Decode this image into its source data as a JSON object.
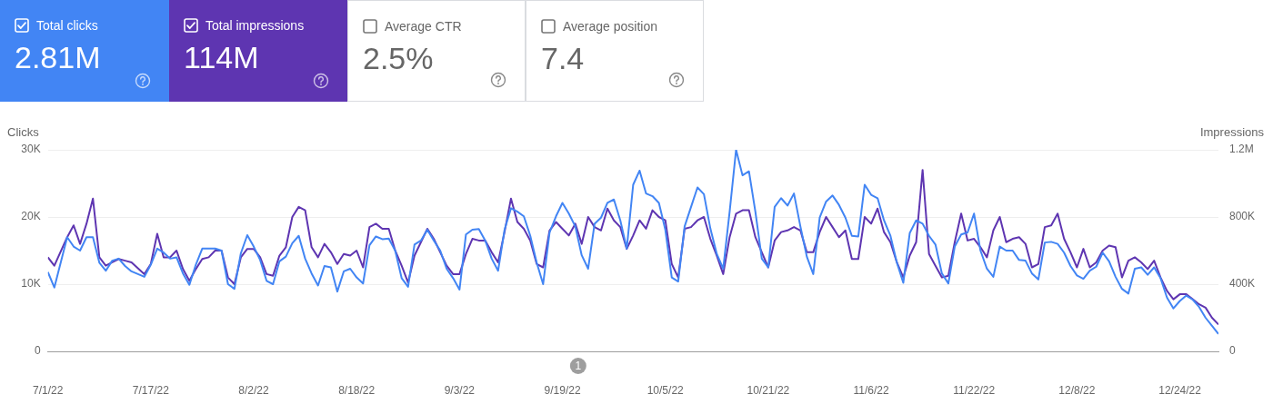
{
  "chart_data": {
    "type": "line",
    "ylabel": "Clicks",
    "y2label": "Impressions",
    "legend": "top left",
    "grid": "y",
    "x": [
      "--07-01",
      "--07-02",
      "--07-04",
      "--07-05",
      "--07-06",
      "--07-07",
      "--07-08",
      "--07-09",
      "--07-10",
      "--07-11",
      "--07-12",
      "--07-13",
      "--07-14",
      "--07-16",
      "--07-17",
      "--07-18",
      "--07-19",
      "--07-20",
      "--07-21",
      "--07-22",
      "--07-23",
      "--07-24",
      "--07-25",
      "--07-26",
      "--07-27",
      "--07-28",
      "--07-29",
      "--07-30",
      "--07-31",
      "--08-01",
      "--08-02",
      "--08-03",
      "--08-04",
      "--08-05",
      "--08-06",
      "--08-07",
      "--08-08",
      "--08-09",
      "--08-10",
      "--08-11",
      "--08-12",
      "--08-13",
      "--08-14",
      "--08-15",
      "--08-16",
      "--08-17",
      "--08-18",
      "--08-19",
      "--08-20",
      "--08-21",
      "--08-22",
      "--08-23",
      "--08-24",
      "--08-25",
      "--08-26",
      "--08-27",
      "--08-28",
      "--08-29",
      "--08-30",
      "--08-31",
      "--09-01",
      "--09-02",
      "--09-03",
      "--09-04",
      "--09-05",
      "--09-06",
      "--09-07",
      "--09-08",
      "--09-09",
      "--09-10",
      "--09-11",
      "--09-12",
      "--09-13",
      "--09-14",
      "--09-15",
      "--09-16",
      "--09-17",
      "--09-18",
      "--09-19",
      "--09-20",
      "--09-21",
      "--09-22",
      "--09-23",
      "--09-24",
      "--09-25",
      "--09-26",
      "--09-27",
      "--09-28",
      "--09-29",
      "--09-30",
      "--10-01",
      "--10-02",
      "--10-03",
      "--10-04",
      "--10-05",
      "--10-06",
      "--10-07",
      "--10-08",
      "--10-09",
      "--10-10",
      "--10-11",
      "--10-12",
      "--10-13",
      "--10-14",
      "--10-15",
      "--10-16",
      "--10-17",
      "--10-18",
      "--10-19",
      "--10-20",
      "--10-21",
      "--10-22",
      "--10-23",
      "--10-24",
      "--10-25",
      "--10-26",
      "--10-27",
      "--10-28",
      "--10-29",
      "--10-30",
      "--10-31",
      "--11-01",
      "--11-02",
      "--11-03",
      "--11-04",
      "--11-05",
      "--11-06",
      "--11-07",
      "--11-08",
      "--11-09",
      "--11-10",
      "--11-11",
      "--11-12",
      "--11-13",
      "--11-14",
      "--11-15",
      "--11-16",
      "--11-17",
      "--11-18",
      "--11-19",
      "--11-20",
      "--11-21",
      "--11-22",
      "--11-23",
      "--11-24",
      "--11-25",
      "--11-26",
      "--11-27",
      "--11-28",
      "--11-29",
      "--11-30",
      "--12-01",
      "--12-02",
      "--12-03",
      "--12-04",
      "--12-05",
      "--12-06",
      "--12-07",
      "--12-08",
      "--12-09",
      "--12-10",
      "--12-11",
      "--12-12",
      "--12-13",
      "--12-14",
      "--12-15",
      "--12-16",
      "--12-17",
      "--12-18",
      "--12-19",
      "--12-20",
      "--12-21",
      "--12-22",
      "--12-23",
      "--12-24",
      "--12-25",
      "--12-26",
      "--12-27",
      "--12-28",
      "--12-29",
      "--12-30"
    ],
    "series": [
      {
        "name": "Total clicks",
        "color": "#4285f4",
        "values": [
          11800,
          9500,
          17000,
          15600,
          15000,
          17000,
          17000,
          13200,
          12000,
          13500,
          13800,
          12700,
          11900,
          11100,
          12900,
          15300,
          14700,
          13800,
          14000,
          11600,
          9900,
          12900,
          15300,
          15300,
          15300,
          15000,
          10000,
          9300,
          14600,
          17300,
          15600,
          13600,
          10500,
          10000,
          13400,
          14100,
          16100,
          17200,
          13800,
          11600,
          9800,
          12700,
          12500,
          8900,
          11900,
          12300,
          11000,
          10100,
          15800,
          17100,
          16700,
          16800,
          15000,
          10900,
          9600,
          15900,
          16500,
          18100,
          16500,
          15000,
          12300,
          10900,
          9200,
          17400,
          18100,
          18200,
          16500,
          13800,
          12000,
          18100,
          21300,
          20800,
          20100,
          17200,
          13200,
          10000,
          17700,
          20100,
          22100,
          20500,
          18600,
          14300,
          12300,
          19000,
          19900,
          22100,
          22600,
          19500,
          15300,
          24800,
          26900,
          23500,
          23100,
          22100,
          18100,
          11000,
          10400,
          18600,
          21500,
          24400,
          23400,
          18300,
          14500,
          12300,
          20800,
          30000,
          26200,
          26800,
          20800,
          13800,
          12500,
          21500,
          22800,
          21700,
          23500,
          18600,
          14100,
          11500,
          19900,
          22300,
          23200,
          21800,
          19900,
          17200,
          17100,
          24800,
          23300,
          22800,
          19500,
          17200,
          13200,
          10200,
          17600,
          19500,
          19000,
          17200,
          15900,
          11600,
          10100,
          15600,
          17400,
          17700,
          20500,
          15000,
          12300,
          11100,
          15600,
          15000,
          15000,
          13600,
          13500,
          11600,
          10700,
          16200,
          16300,
          16000,
          14700,
          12700,
          11300,
          10800,
          12000,
          12600,
          14700,
          13400,
          11100,
          9300,
          8600,
          12300,
          12500,
          11400,
          12500,
          10900,
          8000,
          6400,
          7500,
          8300,
          7700,
          6600,
          5000,
          3800,
          2600
        ]
      },
      {
        "name": "Total impressions",
        "color": "#5e35b1",
        "axis": "y2",
        "values": [
          560000,
          510000,
          680000,
          750000,
          640000,
          760000,
          910000,
          560000,
          510000,
          530000,
          550000,
          540000,
          530000,
          460000,
          520000,
          700000,
          560000,
          560000,
          600000,
          490000,
          420000,
          490000,
          550000,
          560000,
          600000,
          600000,
          440000,
          400000,
          560000,
          610000,
          610000,
          560000,
          460000,
          450000,
          570000,
          620000,
          800000,
          860000,
          840000,
          620000,
          560000,
          640000,
          590000,
          520000,
          580000,
          570000,
          600000,
          500000,
          740000,
          760000,
          730000,
          730000,
          600000,
          510000,
          410000,
          570000,
          650000,
          730000,
          670000,
          590000,
          510000,
          460000,
          460000,
          580000,
          670000,
          660000,
          660000,
          590000,
          530000,
          710000,
          910000,
          770000,
          730000,
          660000,
          520000,
          500000,
          720000,
          770000,
          730000,
          690000,
          760000,
          640000,
          800000,
          740000,
          720000,
          850000,
          780000,
          740000,
          610000,
          690000,
          780000,
          730000,
          840000,
          800000,
          780000,
          520000,
          440000,
          730000,
          740000,
          780000,
          800000,
          670000,
          570000,
          460000,
          680000,
          820000,
          840000,
          840000,
          680000,
          590000,
          500000,
          660000,
          710000,
          720000,
          740000,
          720000,
          590000,
          590000,
          710000,
          800000,
          740000,
          680000,
          720000,
          550000,
          550000,
          800000,
          760000,
          850000,
          710000,
          650000,
          530000,
          440000,
          570000,
          650000,
          1080000,
          580000,
          510000,
          440000,
          450000,
          650000,
          820000,
          660000,
          670000,
          620000,
          560000,
          720000,
          800000,
          650000,
          670000,
          680000,
          640000,
          500000,
          520000,
          740000,
          750000,
          820000,
          670000,
          590000,
          500000,
          610000,
          500000,
          530000,
          600000,
          630000,
          620000,
          440000,
          540000,
          560000,
          530000,
          490000,
          540000,
          440000,
          360000,
          310000,
          340000,
          340000,
          310000,
          280000,
          260000,
          200000,
          160000
        ]
      }
    ],
    "xlim": [
      "--07-01",
      "--12-30"
    ],
    "xticks": [
      {
        "value": "--07-01",
        "label": "7/1/22"
      },
      {
        "value": "--07-17",
        "label": "7/17/22"
      },
      {
        "value": "--08-02",
        "label": "8/2/22"
      },
      {
        "value": "--08-18",
        "label": "8/18/22"
      },
      {
        "value": "--09-03",
        "label": "9/3/22"
      },
      {
        "value": "--09-19",
        "label": "9/19/22"
      },
      {
        "value": "--10-05",
        "label": "10/5/22"
      },
      {
        "value": "--10-21",
        "label": "10/21/22"
      },
      {
        "value": "--11-06",
        "label": "11/6/22"
      },
      {
        "value": "--11-22",
        "label": "11/22/22"
      },
      {
        "value": "--12-08",
        "label": "12/8/22"
      },
      {
        "value": "--12-24",
        "label": "12/24/22"
      }
    ],
    "ylim": [
      0,
      30000
    ],
    "yticks": [
      0,
      {
        "value": 10000,
        "label": "10K"
      },
      {
        "value": 20000,
        "label": "20K"
      },
      {
        "value": 30000,
        "label": "30K"
      }
    ],
    "y2lim": [
      0,
      1200000
    ],
    "y2ticks": [
      0,
      {
        "value": 400000,
        "label": "400K"
      },
      {
        "value": 800000,
        "label": "800K"
      },
      {
        "value": 1200000,
        "label": "1.2M"
      }
    ],
    "annotations": [
      "2.81M",
      "114M",
      "Average CTR",
      "2.5%",
      "Average position",
      "7.4",
      "1"
    ]
  }
}
